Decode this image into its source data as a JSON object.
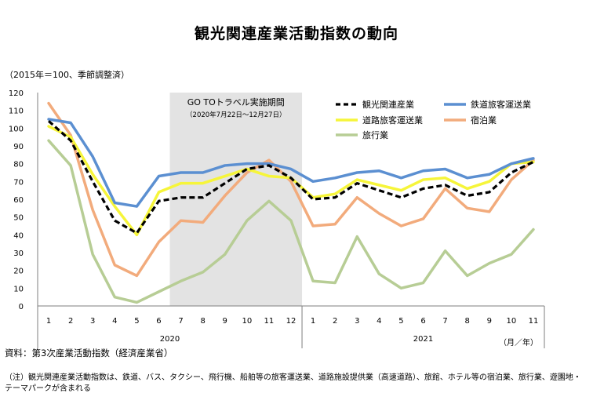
{
  "title": "観光関連産業活動指数の動向",
  "unit_note": "（2015年＝100、季節調整済）",
  "source": "資料：第3次産業活動指数（経済産業省）",
  "footnote": "（注）観光関連産業活動指数は、鉄道、バス、タクシー、飛行機、船舶等の旅客運送業、道路施設提供業（高速道路）、旅館、ホテル等の宿泊業、旅行業、遊園地・テーマパークが含まれる",
  "chart_data": {
    "type": "line",
    "categories": [
      "1",
      "2",
      "3",
      "4",
      "5",
      "6",
      "7",
      "8",
      "9",
      "10",
      "11",
      "12",
      "1",
      "2",
      "3",
      "4",
      "5",
      "6",
      "7",
      "8",
      "9",
      "10",
      "11"
    ],
    "year_labels": [
      "2020",
      "2021"
    ],
    "x_unit_label": "（月／年）",
    "ylim": [
      0,
      120
    ],
    "yticks": [
      0,
      10,
      20,
      30,
      40,
      50,
      60,
      70,
      80,
      90,
      100,
      110,
      120
    ],
    "grid": false,
    "legend_position": "top-right",
    "shaded_region": {
      "from_category": 6,
      "to_category": 11,
      "label": "GO TOトラベル実施期間",
      "sublabel": "（2020年7月22日～12月27日）",
      "color": "#e3e3e3"
    },
    "series": [
      {
        "name": "観光関連産業",
        "color": "#000000",
        "dashed": true,
        "values": [
          104,
          93,
          70,
          48,
          41,
          59,
          61,
          61,
          69,
          77,
          79,
          72,
          60,
          61,
          69,
          65,
          61,
          66,
          68,
          62,
          64,
          75,
          81
        ]
      },
      {
        "name": "鉄道旅客運送業",
        "color": "#5b8fd1",
        "dashed": false,
        "values": [
          105,
          103,
          84,
          58,
          56,
          73,
          75,
          75,
          79,
          80,
          80,
          77,
          70,
          72,
          75,
          76,
          72,
          76,
          77,
          72,
          74,
          80,
          83
        ]
      },
      {
        "name": "道路旅客運送業",
        "color": "#f6f53a",
        "dashed": false,
        "values": [
          101,
          95,
          74,
          56,
          40,
          64,
          69,
          69,
          73,
          77,
          73,
          72,
          61,
          63,
          71,
          68,
          65,
          71,
          72,
          66,
          70,
          80,
          81
        ]
      },
      {
        "name": "宿泊業",
        "color": "#f2ab7c",
        "dashed": false,
        "values": [
          114,
          96,
          54,
          23,
          17,
          36,
          48,
          47,
          62,
          75,
          82,
          70,
          45,
          46,
          61,
          52,
          45,
          49,
          66,
          55,
          53,
          71,
          82
        ]
      },
      {
        "name": "旅行業",
        "color": "#b7cd95",
        "dashed": false,
        "values": [
          93,
          79,
          29,
          5,
          2,
          8,
          14,
          19,
          29,
          48,
          59,
          48,
          14,
          13,
          39,
          18,
          10,
          13,
          31,
          17,
          24,
          29,
          43
        ]
      }
    ]
  }
}
